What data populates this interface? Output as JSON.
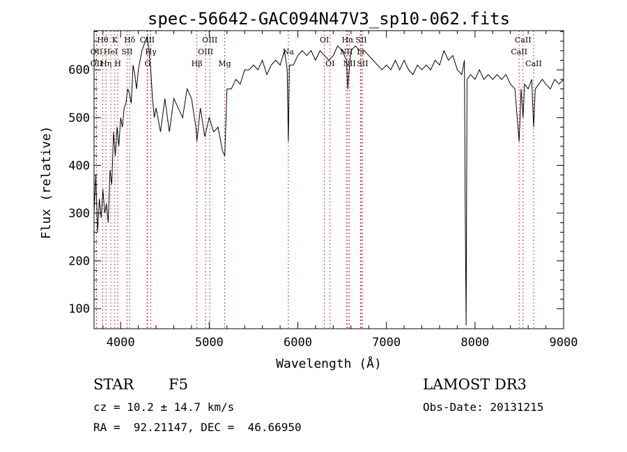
{
  "chart_data": {
    "type": "line",
    "title": "spec-56642-GAC094N47V3_sp10-062.fits",
    "xlabel": "Wavelength (Å)",
    "ylabel": "Flux (relative)",
    "xlim": [
      3700,
      9000
    ],
    "ylim": [
      58,
      682
    ],
    "xticks": [
      4000,
      5000,
      6000,
      7000,
      8000,
      9000
    ],
    "yticks": [
      100,
      200,
      300,
      400,
      500,
      600
    ],
    "grid": false,
    "series": [
      {
        "values_x": [
          3700,
          3720,
          3740,
          3760,
          3780,
          3800,
          3820,
          3840,
          3860,
          3880,
          3900,
          3920,
          3940,
          3960,
          3980,
          4000,
          4020,
          4040,
          4060,
          4080,
          4100,
          4120,
          4140,
          4160,
          4180,
          4200,
          4220,
          4240,
          4260,
          4280,
          4300,
          4320,
          4340,
          4360,
          4380,
          4400,
          4450,
          4500,
          4550,
          4600,
          4650,
          4700,
          4750,
          4800,
          4850,
          4861,
          4900,
          4950,
          5000,
          5050,
          5100,
          5150,
          5175,
          5200,
          5250,
          5300,
          5350,
          5400,
          5450,
          5500,
          5550,
          5600,
          5650,
          5700,
          5750,
          5800,
          5850,
          5880,
          5893,
          5905,
          5950,
          6000,
          6050,
          6100,
          6150,
          6200,
          6250,
          6300,
          6350,
          6400,
          6450,
          6500,
          6550,
          6563,
          6580,
          6600,
          6650,
          6700,
          6750,
          6800,
          6850,
          6900,
          6950,
          7000,
          7050,
          7100,
          7150,
          7200,
          7250,
          7300,
          7350,
          7400,
          7450,
          7500,
          7550,
          7600,
          7650,
          7700,
          7750,
          7800,
          7850,
          7880,
          7890,
          7900,
          7910,
          7950,
          8000,
          8050,
          8100,
          8150,
          8200,
          8250,
          8300,
          8350,
          8400,
          8450,
          8498,
          8520,
          8542,
          8560,
          8600,
          8640,
          8662,
          8680,
          8720,
          8760,
          8800,
          8850,
          8900,
          8950,
          9000
        ],
        "values_y": [
          300,
          380,
          260,
          330,
          290,
          350,
          300,
          320,
          280,
          390,
          360,
          470,
          420,
          480,
          440,
          500,
          480,
          520,
          530,
          560,
          550,
          530,
          610,
          590,
          560,
          600,
          620,
          640,
          650,
          660,
          670,
          640,
          600,
          540,
          500,
          520,
          470,
          540,
          470,
          540,
          520,
          500,
          560,
          540,
          480,
          450,
          520,
          460,
          500,
          470,
          480,
          430,
          420,
          560,
          560,
          580,
          570,
          600,
          600,
          610,
          600,
          620,
          590,
          610,
          620,
          610,
          640,
          600,
          450,
          610,
          610,
          630,
          640,
          630,
          640,
          620,
          640,
          630,
          620,
          630,
          650,
          640,
          620,
          560,
          600,
          640,
          650,
          640,
          640,
          630,
          620,
          610,
          600,
          610,
          600,
          620,
          600,
          620,
          600,
          590,
          610,
          600,
          610,
          600,
          620,
          610,
          640,
          620,
          630,
          600,
          590,
          620,
          300,
          65,
          580,
          590,
          580,
          600,
          580,
          590,
          580,
          590,
          580,
          590,
          570,
          560,
          450,
          560,
          500,
          570,
          560,
          580,
          480,
          560,
          570,
          580,
          570,
          560,
          580,
          570,
          580
        ]
      }
    ],
    "lines": [
      {
        "name": "OII",
        "wl": 3727,
        "row": 2
      },
      {
        "name": "Hθ",
        "wl": 3798,
        "row": 1
      },
      {
        "name": "OII",
        "wl": 3727,
        "row": 3
      },
      {
        "name": "Hη",
        "wl": 3835,
        "row": 3
      },
      {
        "name": "HeI",
        "wl": 3889,
        "row": 2
      },
      {
        "name": "K",
        "wl": 3934,
        "row": 1
      },
      {
        "name": "H",
        "wl": 3968,
        "row": 3
      },
      {
        "name": "SII",
        "wl": 4072,
        "row": 2
      },
      {
        "name": "Hδ",
        "wl": 4102,
        "row": 1
      },
      {
        "name": "CIII",
        "wl": 4300,
        "row": 1
      },
      {
        "name": "G",
        "wl": 4304,
        "row": 3
      },
      {
        "name": "Hγ",
        "wl": 4341,
        "row": 2
      },
      {
        "name": "Hβ",
        "wl": 4861,
        "row": 3
      },
      {
        "name": "OIII",
        "wl": 4959,
        "row": 2
      },
      {
        "name": "OIII",
        "wl": 5007,
        "row": 1
      },
      {
        "name": "Mg",
        "wl": 5175,
        "row": 3
      },
      {
        "name": "Na",
        "wl": 5893,
        "row": 2
      },
      {
        "name": "OI",
        "wl": 6300,
        "row": 1
      },
      {
        "name": "OI",
        "wl": 6364,
        "row": 3
      },
      {
        "name": "NII",
        "wl": 6548,
        "row": 2
      },
      {
        "name": "Hα",
        "wl": 6563,
        "row": 1
      },
      {
        "name": "NII",
        "wl": 6583,
        "row": 3
      },
      {
        "name": "Li",
        "wl": 6708,
        "row": 2
      },
      {
        "name": "SII",
        "wl": 6716,
        "row": 1
      },
      {
        "name": "SII",
        "wl": 6731,
        "row": 3
      },
      {
        "name": "CaII",
        "wl": 8498,
        "row": 2
      },
      {
        "name": "CaII",
        "wl": 8542,
        "row": 1
      },
      {
        "name": "CaII",
        "wl": 8662,
        "row": 3
      }
    ]
  },
  "info": {
    "object_class": "STAR",
    "subclass": "F5",
    "survey": "LAMOST DR3",
    "redshift_text": "cz = 10.2 ± 14.7 km/s",
    "obs_date_text": "Obs-Date: 20131215",
    "coords_text": "RA =  92.21147, DEC =  46.66950"
  }
}
